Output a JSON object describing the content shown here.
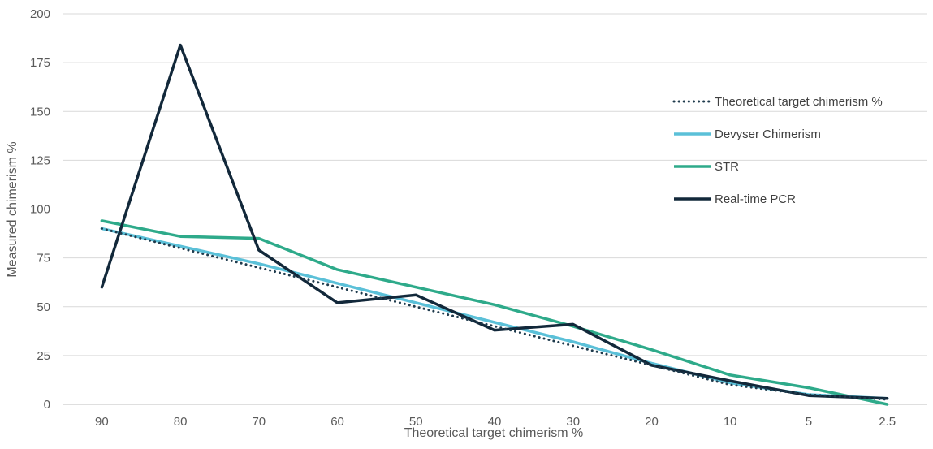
{
  "chart_data": {
    "type": "line",
    "title": "",
    "xlabel": "Theoretical  target chimerism %",
    "ylabel": "Measured chimerism %",
    "categories": [
      "90",
      "80",
      "70",
      "60",
      "50",
      "40",
      "30",
      "20",
      "10",
      "5",
      "2.5"
    ],
    "ylim": [
      0,
      200
    ],
    "yticks": [
      "0",
      "25",
      "50",
      "75",
      "100",
      "125",
      "150",
      "175",
      "200"
    ],
    "grid": "horizontal",
    "legend_position": "right",
    "series": [
      {
        "name": "Theoretical target chimerism %",
        "color": "#1f3b4d",
        "style": "dotted",
        "values": [
          90,
          80,
          70,
          60,
          50,
          40,
          30,
          20,
          10,
          5,
          2.5
        ]
      },
      {
        "name": "Devyser Chimerism",
        "color": "#5bc0d8",
        "style": "solid",
        "values": [
          90,
          81,
          72,
          62,
          52,
          42,
          32,
          21,
          11,
          5,
          3
        ]
      },
      {
        "name": "STR",
        "color": "#2eaa8a",
        "style": "solid",
        "values": [
          94,
          86,
          85,
          69,
          60,
          51,
          40,
          28,
          15,
          8.5,
          0
        ]
      },
      {
        "name": "Real-time PCR",
        "color": "#12283a",
        "style": "solid",
        "values": [
          60,
          184,
          79,
          52,
          56,
          38,
          41,
          20,
          12,
          4.5,
          3
        ]
      }
    ]
  }
}
